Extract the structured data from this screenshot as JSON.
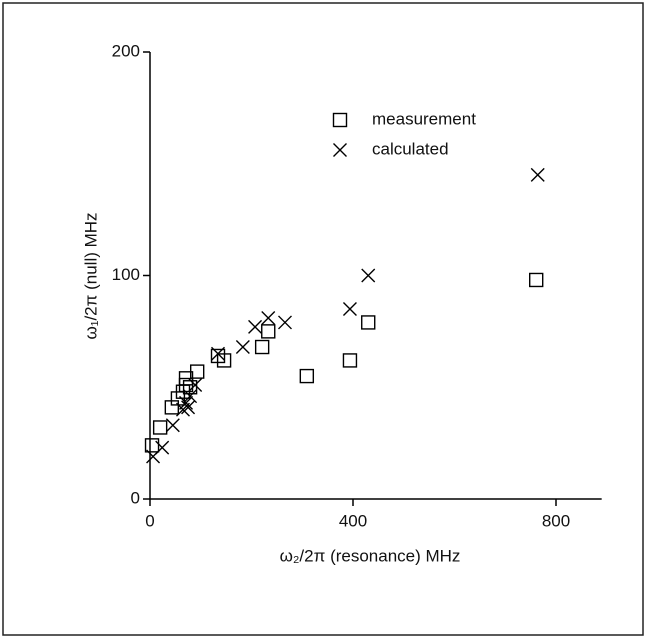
{
  "chart_data": {
    "type": "scatter",
    "x_label": "ω₂/2π (resonance) MHz",
    "y_label": "ω₁/2π (null) MHz",
    "xlim": [
      0,
      890
    ],
    "xticks": [
      0,
      400,
      800
    ],
    "ylim": [
      0,
      200
    ],
    "yticks": [
      0,
      100,
      200
    ],
    "legend_position": "upper center",
    "series": [
      {
        "name": "measurement",
        "marker": "square",
        "color": "#000000",
        "x": [
          4,
          20,
          43,
          55,
          65,
          71,
          71,
          79,
          93,
          134,
          146,
          221,
          233,
          309,
          394,
          430,
          761
        ],
        "values": [
          24,
          32,
          41,
          45,
          48,
          54,
          51,
          50,
          57,
          64,
          62,
          68,
          75,
          55,
          62,
          79,
          98
        ]
      },
      {
        "name": "calculated",
        "marker": "cross",
        "color": "#000000",
        "x": [
          6,
          24,
          45,
          65,
          71,
          75,
          79,
          89,
          134,
          183,
          207,
          233,
          266,
          394,
          430,
          764
        ],
        "values": [
          19,
          23,
          33,
          40,
          43,
          41,
          46,
          51,
          65,
          68,
          77,
          81,
          79,
          85,
          100,
          145
        ]
      }
    ]
  }
}
